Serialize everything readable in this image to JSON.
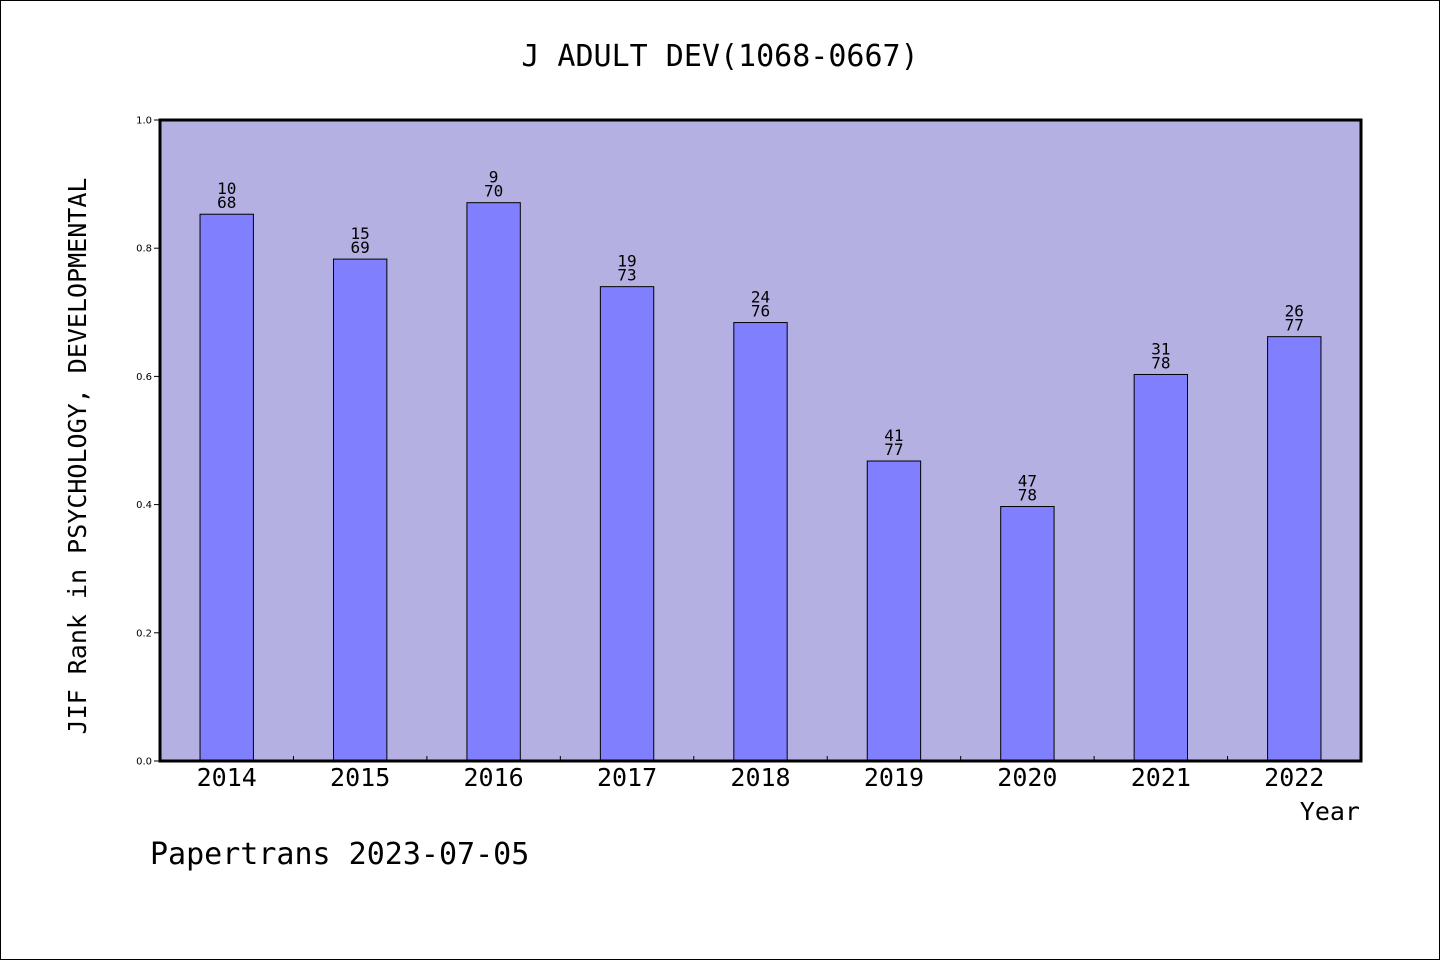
{
  "chart_data": {
    "type": "bar",
    "title": "J ADULT DEV(1068-0667)",
    "xlabel": "Year",
    "ylabel": "JIF Rank in PSYCHOLOGY, DEVELOPMENTAL",
    "ylim": [
      0,
      1.0
    ],
    "yticks": [
      "0.0",
      "0.2",
      "0.4",
      "0.6",
      "0.8",
      "1.0"
    ],
    "categories": [
      "2014",
      "2015",
      "2016",
      "2017",
      "2018",
      "2019",
      "2020",
      "2021",
      "2022"
    ],
    "values": [
      0.853,
      0.783,
      0.871,
      0.74,
      0.684,
      0.468,
      0.397,
      0.603,
      0.662
    ],
    "rank": [
      "10",
      "15",
      "9",
      "19",
      "24",
      "41",
      "47",
      "31",
      "26"
    ],
    "total": [
      "68",
      "69",
      "70",
      "73",
      "76",
      "77",
      "78",
      "78",
      "77"
    ],
    "plot_background": "#b4b0e2",
    "bar_color": "#8080ff",
    "grid": false
  },
  "footer": "Papertrans 2023-07-05"
}
